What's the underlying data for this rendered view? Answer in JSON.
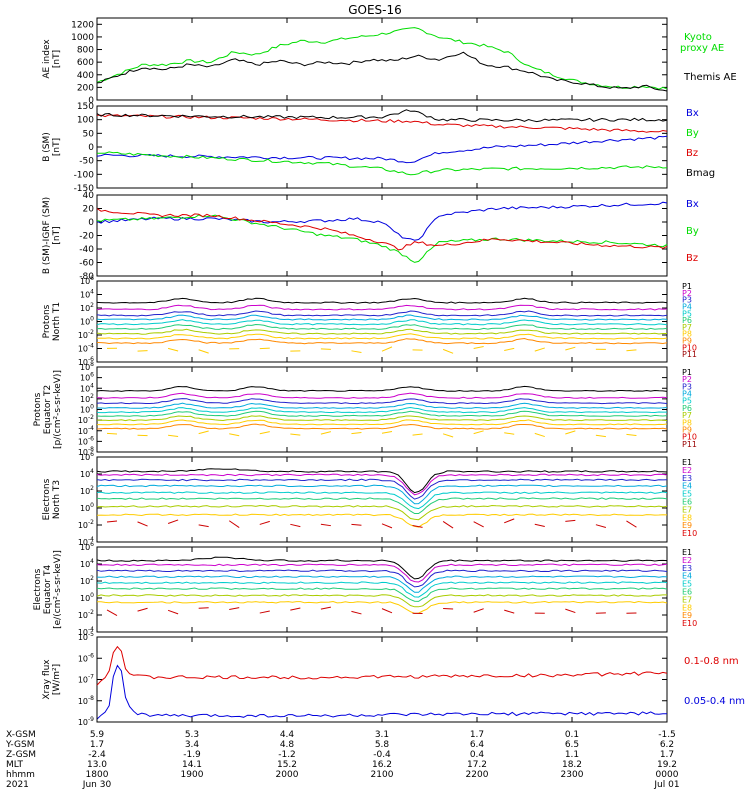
{
  "title": "GOES-16",
  "colors": {
    "black": "#000000",
    "green": "#00dd00",
    "blue": "#0000dd",
    "red": "#dd0000",
    "ch": [
      "#000000",
      "#cc00cc",
      "#2222cc",
      "#00aadd",
      "#00cccc",
      "#22cc77",
      "#aacc00",
      "#ffcc00",
      "#ff8800",
      "#dd0000",
      "#990000"
    ]
  },
  "chart_data": [
    {
      "type": "line",
      "panel": "ae",
      "ylabel_lines": [
        "AE index",
        "[nT]"
      ],
      "ylim": [
        0,
        1300
      ],
      "ticks": [
        0,
        200,
        400,
        600,
        800,
        1000,
        1200
      ],
      "legend": [
        "Kyoto",
        "proxy AE",
        "Themis AE"
      ],
      "series": [
        {
          "name": "Kyoto proxy AE",
          "color": "green",
          "x": [
            0,
            0.04,
            0.08,
            0.12,
            0.16,
            0.2,
            0.24,
            0.28,
            0.32,
            0.36,
            0.4,
            0.44,
            0.48,
            0.52,
            0.56,
            0.6,
            0.64,
            0.68,
            0.72,
            0.76,
            0.8,
            0.84,
            0.88,
            0.92,
            0.96,
            1
          ],
          "y": [
            280,
            420,
            560,
            560,
            620,
            600,
            760,
            720,
            860,
            940,
            920,
            980,
            1020,
            1080,
            1140,
            1000,
            920,
            860,
            760,
            520,
            400,
            300,
            240,
            200,
            220,
            180
          ]
        },
        {
          "name": "Themis AE",
          "color": "black",
          "x": [
            0,
            0.04,
            0.08,
            0.12,
            0.16,
            0.2,
            0.24,
            0.28,
            0.32,
            0.36,
            0.4,
            0.44,
            0.48,
            0.52,
            0.56,
            0.6,
            0.64,
            0.68,
            0.72,
            0.76,
            0.8,
            0.84,
            0.88,
            0.92,
            0.96,
            1
          ],
          "y": [
            260,
            400,
            520,
            480,
            560,
            520,
            640,
            560,
            620,
            560,
            600,
            580,
            640,
            620,
            700,
            640,
            760,
            560,
            520,
            440,
            320,
            280,
            220,
            180,
            220,
            140
          ]
        }
      ]
    },
    {
      "type": "line",
      "panel": "b_sm",
      "ylabel_lines": [
        "B (SM)",
        "[nT]"
      ],
      "ylim": [
        -150,
        150
      ],
      "ticks": [
        -150,
        -100,
        -50,
        0,
        50,
        100,
        150
      ],
      "legend": [
        "Bx",
        "By",
        "Bz",
        "Bmag"
      ],
      "series": [
        {
          "name": "Bx",
          "color": "blue",
          "x": [
            0,
            0.1,
            0.2,
            0.3,
            0.4,
            0.5,
            0.55,
            0.6,
            0.7,
            0.8,
            0.9,
            1
          ],
          "y": [
            -30,
            -32,
            -35,
            -38,
            -40,
            -42,
            -55,
            -20,
            0,
            10,
            25,
            35
          ]
        },
        {
          "name": "By",
          "color": "green",
          "x": [
            0,
            0.1,
            0.2,
            0.3,
            0.4,
            0.5,
            0.55,
            0.6,
            0.7,
            0.8,
            0.9,
            1
          ],
          "y": [
            -20,
            -30,
            -40,
            -50,
            -60,
            -80,
            -100,
            -85,
            -80,
            -78,
            -75,
            -72
          ]
        },
        {
          "name": "Bz",
          "color": "red",
          "x": [
            0,
            0.1,
            0.2,
            0.3,
            0.4,
            0.5,
            0.55,
            0.6,
            0.7,
            0.8,
            0.9,
            1
          ],
          "y": [
            115,
            112,
            108,
            105,
            100,
            95,
            95,
            82,
            75,
            70,
            62,
            55
          ]
        },
        {
          "name": "Bmag",
          "color": "black",
          "x": [
            0,
            0.1,
            0.2,
            0.3,
            0.4,
            0.5,
            0.55,
            0.6,
            0.7,
            0.8,
            0.9,
            1
          ],
          "y": [
            118,
            115,
            112,
            110,
            108,
            110,
            135,
            100,
            98,
            98,
            100,
            100
          ]
        }
      ]
    },
    {
      "type": "line",
      "panel": "b_igrf",
      "ylabel_lines": [
        "B (SM)-IGRF (SM)",
        "[nT]"
      ],
      "ylim": [
        -80,
        40
      ],
      "ticks": [
        -80,
        -60,
        -40,
        -20,
        0,
        20,
        40
      ],
      "legend": [
        "Bx",
        "By",
        "Bz"
      ],
      "series": [
        {
          "name": "Bx",
          "color": "blue",
          "x": [
            0,
            0.1,
            0.2,
            0.3,
            0.4,
            0.45,
            0.5,
            0.53,
            0.56,
            0.6,
            0.7,
            0.8,
            0.9,
            1
          ],
          "y": [
            0,
            5,
            5,
            0,
            2,
            5,
            0,
            -20,
            -30,
            10,
            20,
            22,
            25,
            28
          ]
        },
        {
          "name": "By",
          "color": "green",
          "x": [
            0,
            0.1,
            0.2,
            0.3,
            0.4,
            0.45,
            0.5,
            0.53,
            0.56,
            0.6,
            0.7,
            0.8,
            0.9,
            1
          ],
          "y": [
            2,
            5,
            10,
            -5,
            -20,
            -25,
            -35,
            -45,
            -60,
            -30,
            -25,
            -28,
            -30,
            -35
          ]
        },
        {
          "name": "Bz",
          "color": "red",
          "x": [
            0,
            0.1,
            0.2,
            0.3,
            0.4,
            0.45,
            0.5,
            0.53,
            0.56,
            0.6,
            0.7,
            0.8,
            0.9,
            1
          ],
          "y": [
            18,
            10,
            10,
            0,
            -10,
            -20,
            -30,
            -40,
            -30,
            -35,
            -25,
            -30,
            -35,
            -38
          ]
        }
      ]
    },
    {
      "type": "line",
      "panel": "protons_t1",
      "log": true,
      "ylabel_lines": [
        "Protons",
        "North T1"
      ],
      "ylim_exp": [
        -6,
        6
      ],
      "ticks_exp": [
        -6,
        -4,
        -2,
        0,
        2,
        4,
        6
      ],
      "legend": [
        "P1",
        "P2",
        "P3",
        "P4",
        "P5",
        "P6",
        "P7",
        "P8",
        "P9",
        "P10",
        "P11"
      ],
      "base_log10": [
        2.8,
        1.8,
        0.9,
        0.3,
        -0.4,
        -1.1,
        -1.8,
        -2.5,
        -3.2
      ],
      "bump_x": [
        0.15,
        0.28,
        0.55,
        0.75
      ],
      "bump_amp": 0.6
    },
    {
      "type": "line",
      "panel": "protons_t2",
      "log": true,
      "ylabel_lines": [
        "Protons",
        "Equator T2",
        "[p/(cm²-s-sr-keV)]"
      ],
      "ylim_exp": [
        -8,
        8
      ],
      "ticks_exp": [
        -8,
        -6,
        -4,
        -2,
        0,
        2,
        4,
        6,
        8
      ],
      "legend": [
        "P1",
        "P2",
        "P3",
        "P4",
        "P5",
        "P6",
        "P7",
        "P8",
        "P9",
        "P10",
        "P11"
      ],
      "base_log10": [
        3.5,
        2.2,
        1.2,
        0.3,
        -0.5,
        -1.2,
        -2.0,
        -2.8,
        -3.6
      ],
      "bump_x": [
        0.15,
        0.28,
        0.55,
        0.75
      ],
      "bump_amp": 0.8
    },
    {
      "type": "line",
      "panel": "electrons_t3",
      "log": true,
      "ylabel_lines": [
        "Electrons",
        "North T3"
      ],
      "ylim_exp": [
        -4,
        6
      ],
      "ticks_exp": [
        -4,
        -2,
        0,
        2,
        4,
        6
      ],
      "legend": [
        "E1",
        "E2",
        "E3",
        "E4",
        "E5",
        "E6",
        "E7",
        "E8",
        "E9",
        "E10"
      ],
      "base_log10": [
        4.3,
        3.9,
        3.3,
        2.6,
        1.8,
        1.1,
        0.2,
        -0.8
      ],
      "dip_x": 0.56,
      "dip_amp": 2.5
    },
    {
      "type": "line",
      "panel": "electrons_t4",
      "log": true,
      "ylabel_lines": [
        "Electrons",
        "Equator T4",
        "[e/(cm²-s-sr-keV)]"
      ],
      "ylim_exp": [
        -4,
        6
      ],
      "ticks_exp": [
        -4,
        -2,
        0,
        2,
        4,
        6
      ],
      "legend": [
        "E1",
        "E2",
        "E3",
        "E4",
        "E5",
        "E6",
        "E7",
        "E8",
        "E9",
        "E10"
      ],
      "base_log10": [
        4.4,
        3.9,
        3.2,
        2.5,
        1.8,
        1.1,
        0.3,
        -0.5
      ],
      "dip_x": 0.56,
      "dip_amp": 2.2
    },
    {
      "type": "line",
      "panel": "xray",
      "log": true,
      "ylabel_lines": [
        "Xray flux",
        "[W/m²]"
      ],
      "ylim_exp": [
        -9,
        -5
      ],
      "ticks_exp": [
        -9,
        -8,
        -7,
        -6,
        -5
      ],
      "legend": [
        "0.1-0.8 nm",
        "0.05-0.4 nm"
      ],
      "series": [
        {
          "name": "0.1-0.8 nm",
          "color": "red",
          "x": [
            0,
            0.02,
            0.03,
            0.04,
            0.05,
            0.06,
            0.07,
            0.1,
            0.2,
            0.4,
            0.6,
            0.8,
            1
          ],
          "y_log10": [
            -7.2,
            -6.8,
            -5.5,
            -5.3,
            -6.5,
            -6.8,
            -6.85,
            -6.9,
            -6.9,
            -6.9,
            -6.85,
            -6.8,
            -6.7
          ]
        },
        {
          "name": "0.05-0.4 nm",
          "color": "blue",
          "x": [
            0,
            0.02,
            0.03,
            0.04,
            0.05,
            0.06,
            0.07,
            0.1,
            0.2,
            0.4,
            0.6,
            0.8,
            1
          ],
          "y_log10": [
            -8.9,
            -8.5,
            -6.5,
            -6.2,
            -7.8,
            -8.4,
            -8.6,
            -8.7,
            -8.7,
            -8.7,
            -8.65,
            -8.6,
            -8.6
          ]
        }
      ]
    }
  ],
  "axis_table": {
    "labels": [
      "X-GSM",
      "Y-GSM",
      "Z-GSM",
      "MLT",
      "hhmm",
      "2021"
    ],
    "columns": [
      [
        "5.9",
        "1.7",
        "-2.4",
        "13.0",
        "1800",
        "Jun 30"
      ],
      [
        "5.3",
        "3.4",
        "-1.9",
        "14.1",
        "1900",
        ""
      ],
      [
        "4.4",
        "4.8",
        "-1.2",
        "15.2",
        "2000",
        ""
      ],
      [
        "3.1",
        "5.8",
        "-0.4",
        "16.2",
        "2100",
        ""
      ],
      [
        "1.7",
        "6.4",
        "0.4",
        "17.2",
        "2200",
        ""
      ],
      [
        "0.1",
        "6.5",
        "1.1",
        "18.2",
        "2300",
        ""
      ],
      [
        "-1.5",
        "6.2",
        "1.7",
        "19.2",
        "0000",
        "Jul 01"
      ]
    ]
  }
}
